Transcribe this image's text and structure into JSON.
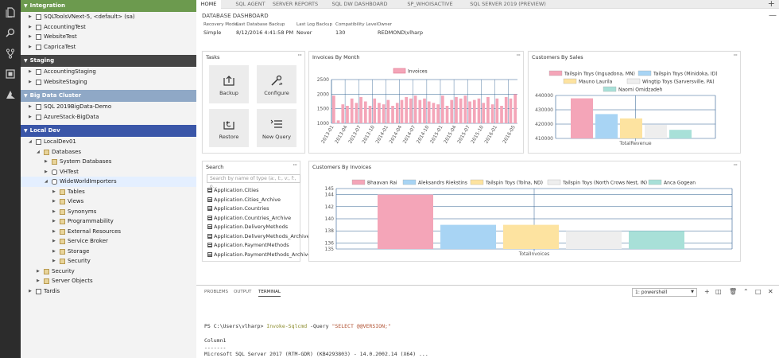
{
  "activity_bar": {
    "icons": [
      "files-icon",
      "search-icon",
      "source-control-icon",
      "extensions-icon",
      "azure-icon"
    ]
  },
  "sidebar": {
    "groups": [
      {
        "label": "Integration",
        "color": "#6c9a4e",
        "rows": [
          {
            "label": "SQLToolsVNext-5, <default> (sa)",
            "indent": 0,
            "icon": "server"
          },
          {
            "label": "AccountingTest",
            "indent": 0,
            "icon": "server"
          },
          {
            "label": "WebsiteTest",
            "indent": 0,
            "icon": "server"
          },
          {
            "label": "CapricaTest",
            "indent": 0,
            "icon": "server"
          }
        ]
      },
      {
        "label": "Staging",
        "color": "#444444",
        "rows": [
          {
            "label": "AccountingStaging",
            "indent": 0,
            "icon": "server"
          },
          {
            "label": "WebsiteStaging",
            "indent": 0,
            "icon": "server"
          }
        ]
      },
      {
        "label": "Big Data Cluster",
        "color": "#8fa8c6",
        "rows": [
          {
            "label": "SQL 2019BigData-Demo",
            "indent": 0,
            "icon": "server"
          },
          {
            "label": "AzureStack-BigData",
            "indent": 0,
            "icon": "server"
          }
        ]
      },
      {
        "label": "Local Dev",
        "color": "#3a56a8",
        "rows": [
          {
            "label": "LocalDev01",
            "indent": 0,
            "icon": "server",
            "open": true
          },
          {
            "label": "Databases",
            "indent": 1,
            "icon": "folder",
            "open": true
          },
          {
            "label": "System Databases",
            "indent": 2,
            "icon": "folder"
          },
          {
            "label": "VHTest",
            "indent": 2,
            "icon": "db"
          },
          {
            "label": "WideWorldImporters",
            "indent": 2,
            "icon": "db",
            "open": true,
            "selected": true
          },
          {
            "label": "Tables",
            "indent": 3,
            "icon": "folder"
          },
          {
            "label": "Views",
            "indent": 3,
            "icon": "folder"
          },
          {
            "label": "Synonyms",
            "indent": 3,
            "icon": "folder"
          },
          {
            "label": "Programmability",
            "indent": 3,
            "icon": "folder"
          },
          {
            "label": "External Resources",
            "indent": 3,
            "icon": "folder"
          },
          {
            "label": "Service Broker",
            "indent": 3,
            "icon": "folder"
          },
          {
            "label": "Storage",
            "indent": 3,
            "icon": "folder"
          },
          {
            "label": "Security",
            "indent": 3,
            "icon": "folder"
          },
          {
            "label": "Security",
            "indent": 1,
            "icon": "folder"
          },
          {
            "label": "Server Objects",
            "indent": 1,
            "icon": "folder"
          },
          {
            "label": "Tardis",
            "indent": 0,
            "icon": "server"
          }
        ]
      }
    ]
  },
  "tabs": [
    "HOME",
    "SQL AGENT",
    "SERVER REPORTS",
    "SQL DW DASHBOARD",
    "SP_WHOISACTIVE",
    "SQL SERVER 2019 (PREVIEW)"
  ],
  "dashboard": {
    "title": "DATABASE DASHBOARD",
    "properties": [
      {
        "label": "Recovery Model",
        "value": "Simple"
      },
      {
        "label": "Last Database Backup",
        "value": "8/12/2016 4:41:58 PM"
      },
      {
        "label": "Last Log Backup",
        "value": "Never"
      },
      {
        "label": "Compatibility Level",
        "value": "130"
      },
      {
        "label": "Owner",
        "value": "REDMOND\\vlharp"
      }
    ]
  },
  "widgets": {
    "tasks": {
      "title": "Tasks",
      "items": [
        {
          "label": "Backup",
          "icon": "backup-icon"
        },
        {
          "label": "Configure",
          "icon": "configure-icon"
        },
        {
          "label": "Restore",
          "icon": "restore-icon"
        },
        {
          "label": "New Query",
          "icon": "new-query-icon"
        }
      ]
    },
    "search": {
      "title": "Search",
      "placeholder": "Search by name of type (a:, t:, v:, f:, o...",
      "results": [
        "Application.Cities",
        "Application.Cities_Archive",
        "Application.Countries",
        "Application.Countries_Archive",
        "Application.DeliveryMethods",
        "Application.DeliveryMethods_Archive",
        "Application.PaymentMethods",
        "Application.PaymentMethods_Archive"
      ]
    },
    "invoices_month": {
      "title": "Invoices By Month"
    },
    "customers_sales": {
      "title": "Customers By Sales"
    },
    "customers_invoices": {
      "title": "Customers By Invoices"
    },
    "menu_label": "···"
  },
  "chart_data": [
    {
      "type": "bar",
      "title": "Invoices By Month",
      "series": [
        {
          "name": "Invoices",
          "color": "#f4a5b8"
        }
      ],
      "x": [
        "2013-01",
        "2013-02",
        "2013-03",
        "2013-04",
        "2013-05",
        "2013-06",
        "2013-07",
        "2013-08",
        "2013-09",
        "2013-10",
        "2013-11",
        "2013-12",
        "2014-01",
        "2014-02",
        "2014-03",
        "2014-04",
        "2014-05",
        "2014-06",
        "2014-07",
        "2014-08",
        "2014-09",
        "2014-10",
        "2014-11",
        "2014-12",
        "2015-01",
        "2015-02",
        "2015-03",
        "2015-04",
        "2015-05",
        "2015-06",
        "2015-07",
        "2015-08",
        "2015-09",
        "2015-10",
        "2015-11",
        "2015-12",
        "2016-01",
        "2016-02",
        "2016-03",
        "2016-04",
        "2016-05"
      ],
      "xticks": [
        "2013-01",
        "2013-04",
        "2013-07",
        "2013-10",
        "2014-01",
        "2014-04",
        "2014-07",
        "2014-10",
        "2015-01",
        "2015-04",
        "2015-07",
        "2015-10",
        "2016-01",
        "2016-05"
      ],
      "values": [
        1950,
        1100,
        1650,
        1600,
        1850,
        1700,
        1900,
        1750,
        1600,
        1850,
        1700,
        1650,
        1800,
        1600,
        1700,
        1800,
        1900,
        1850,
        1950,
        1800,
        1850,
        1750,
        1700,
        1650,
        1950,
        1600,
        1800,
        1900,
        1850,
        1950,
        1750,
        1800,
        1850,
        1700,
        1900,
        1650,
        1850,
        1600,
        1900,
        1850,
        2000
      ],
      "ylim": [
        1000,
        2500
      ],
      "yticks": [
        1000,
        1500,
        2000,
        2500
      ]
    },
    {
      "type": "bar",
      "title": "Customers By Sales",
      "xlabel": "TotalRevenue",
      "series": [
        {
          "name": "Tailspin Toys (Inguadona, MN)",
          "value": 438000,
          "color": "#f4a5b8"
        },
        {
          "name": "Tailspin Toys (Minidoka, ID)",
          "value": 427000,
          "color": "#a8d4f4"
        },
        {
          "name": "Mauno Laurila",
          "value": 424000,
          "color": "#fde3a0"
        },
        {
          "name": "Wingtip Toys (Sarversville, PA)",
          "value": 419500,
          "color": "#eeeeee"
        },
        {
          "name": "Naomi Omidzadeh",
          "value": 416000,
          "color": "#a8e0d8"
        }
      ],
      "ylim": [
        410000,
        440000
      ],
      "yticks": [
        410000,
        420000,
        430000,
        440000
      ]
    },
    {
      "type": "bar",
      "title": "Customers By Invoices",
      "xlabel": "TotalInvoices",
      "series": [
        {
          "name": "Bhaavan Rai",
          "value": 144,
          "color": "#f4a5b8"
        },
        {
          "name": "Aleksandrs Riekstins",
          "value": 139,
          "color": "#a8d4f4"
        },
        {
          "name": "Tailspin Toys (Tolna, ND)",
          "value": 139,
          "color": "#fde3a0"
        },
        {
          "name": "Tailspin Toys (North Crows Nest, IN)",
          "value": 138,
          "color": "#eeeeee"
        },
        {
          "name": "Anca Gogean",
          "value": 138,
          "color": "#a8e0d8"
        }
      ],
      "ylim": [
        135,
        145
      ],
      "yticks": [
        135,
        136,
        138,
        140,
        142,
        144,
        145
      ]
    }
  ],
  "panel": {
    "tabs": [
      "PROBLEMS",
      "OUTPUT",
      "TERMINAL"
    ],
    "shell": "1: powershell",
    "terminal": {
      "prompt": "PS C:\\Users\\vlharp> ",
      "cmd": "Invoke-Sqlcmd",
      "arg": " -Query ",
      "str": "\"SELECT @@VERSION;\"",
      "lines": [
        "Column1",
        "-------",
        "Microsoft SQL Server 2017 (RTM-GDR) (KB4293803) - 14.0.2002.14 (X64) ..."
      ]
    }
  }
}
